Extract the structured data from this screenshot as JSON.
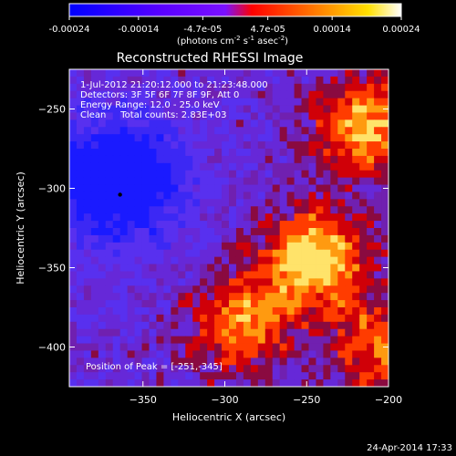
{
  "colorbar": {
    "tick_labels": [
      "-0.00024",
      "-0.00014",
      "-4.7e-05",
      "4.7e-05",
      "0.00014",
      "0.00024"
    ],
    "tick_values": [
      -0.00024,
      -0.00014,
      -4.7e-05,
      4.7e-05,
      0.00014,
      0.00024
    ],
    "range": [
      -0.00024,
      0.00024
    ],
    "units_line": "(photons cm",
    "units_sup1": "-2",
    "units_mid": " s",
    "units_sup2": "-1",
    "units_end": " asec",
    "units_sup3": "-2",
    "units_close": ")",
    "colormap": [
      "#0000ff",
      "#3a00ff",
      "#7a00ff",
      "#8a20ff",
      "#ff0000",
      "#ff8000",
      "#ffd000",
      "#ffffff"
    ]
  },
  "chart_data": {
    "type": "heatmap",
    "title": "Reconstructed RHESSI Image",
    "xlabel": "Heliocentric X (arcsec)",
    "ylabel": "Heliocentric Y (arcsec)",
    "xlim": [
      -395,
      -200
    ],
    "ylim": [
      -425,
      -225
    ],
    "x_ticks": [
      -350,
      -300,
      -250,
      -200
    ],
    "x_tick_labels": [
      "−350",
      "−300",
      "−250",
      "−200"
    ],
    "y_ticks": [
      -250,
      -300,
      -350,
      -400
    ],
    "y_tick_labels": [
      "−250",
      "−300",
      "−350",
      "−400"
    ],
    "info": [
      "1-Jul-2012 21:20:12.000 to 21:23:48.000",
      "Detectors: 3F 5F 6F 7F 8F 9F, Att 0",
      "Energy Range: 12.0 - 25.0 keV",
      "Clean     Total counts: 2.83E+03"
    ],
    "peak_label": "Position of Peak = [-251,-345]",
    "peak": [
      -251,
      -345
    ],
    "min_marker": [
      -364,
      -304
    ],
    "regions": [
      {
        "kind": "negative",
        "x": -365,
        "y": -295,
        "amp": -1.0
      },
      {
        "kind": "positive",
        "x": -245,
        "y": -345,
        "amp": 1.0
      },
      {
        "kind": "positive",
        "x": -215,
        "y": -260,
        "amp": 0.8
      },
      {
        "kind": "positive",
        "x": -290,
        "y": -385,
        "amp": 0.7
      },
      {
        "kind": "positive",
        "x": -205,
        "y": -400,
        "amp": 0.6
      }
    ]
  },
  "timestamp": "24-Apr-2014 17:33"
}
